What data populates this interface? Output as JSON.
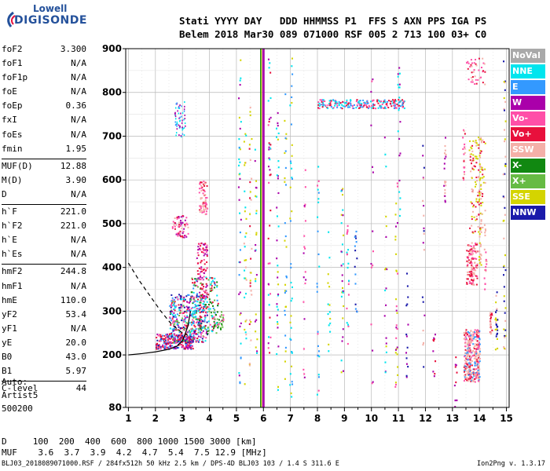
{
  "logo": {
    "brand_top": "Lowell",
    "brand_main": "DIGISONDE"
  },
  "header": {
    "line1": "Stati YYYY DAY   DDD HHMMSS P1  FFS S AXN PPS IGA PS",
    "line2": "Belem 2018 Mar30 089 071000 RSF 005 2 713 100 03+ C0"
  },
  "params": {
    "group1": [
      {
        "label": "foF2",
        "value": "3.300"
      },
      {
        "label": "foF1",
        "value": "N/A"
      },
      {
        "label": "foF1p",
        "value": "N/A"
      },
      {
        "label": "foE",
        "value": "N/A"
      },
      {
        "label": "foEp",
        "value": "0.36"
      },
      {
        "label": "fxI",
        "value": "N/A"
      },
      {
        "label": "foEs",
        "value": "N/A"
      },
      {
        "label": "fmin",
        "value": "1.95"
      }
    ],
    "group2": [
      {
        "label": "MUF(D)",
        "value": "12.88"
      },
      {
        "label": "M(D)",
        "value": "3.90"
      },
      {
        "label": "D",
        "value": "N/A"
      }
    ],
    "group3": [
      {
        "label": "h`F",
        "value": "221.0"
      },
      {
        "label": "h`F2",
        "value": "221.0"
      },
      {
        "label": "h`E",
        "value": "N/A"
      },
      {
        "label": "h`Es",
        "value": "N/A"
      }
    ],
    "group4": [
      {
        "label": "hmF2",
        "value": "244.8"
      },
      {
        "label": "hmF1",
        "value": "N/A"
      },
      {
        "label": "hmE",
        "value": "110.0"
      },
      {
        "label": "yF2",
        "value": "53.4"
      },
      {
        "label": "yF1",
        "value": "N/A"
      },
      {
        "label": "yE",
        "value": "20.0"
      },
      {
        "label": "B0",
        "value": "43.0"
      },
      {
        "label": "B1",
        "value": "5.97"
      }
    ],
    "group5": [
      {
        "label": "C-level",
        "value": "44"
      }
    ]
  },
  "auto": {
    "line1": "Auto:",
    "line2": "Artist5",
    "line3": "500200"
  },
  "footer": {
    "d_line": "D     100  200  400  600  800 1000 1500 3000 [km]",
    "muf_line": "MUF    3.6  3.7  3.9  4.2  4.7  5.4  7.5 12.9 [MHz]",
    "file_line": "BLJ03_2018089071000.RSF / 284fx512h 50 kHz 2.5 km / DPS-4D BLJ03 103 / 1.4 S 311.6 E",
    "version": "Ion2Png v. 1.3.17"
  },
  "legend": [
    {
      "label": "NoVal",
      "color": "#a9a9a9"
    },
    {
      "label": "NNE",
      "color": "#00e5ee"
    },
    {
      "label": "E",
      "color": "#3399ff"
    },
    {
      "label": "W",
      "color": "#aa00aa"
    },
    {
      "label": "Vo-",
      "color": "#ff4fa8"
    },
    {
      "label": "Vo+",
      "color": "#e8103c"
    },
    {
      "label": "SSW",
      "color": "#f4b0a8"
    },
    {
      "label": "X-",
      "color": "#118811"
    },
    {
      "label": "X+",
      "color": "#66bb44"
    },
    {
      "label": "SSE",
      "color": "#d4d400"
    },
    {
      "label": "NNW",
      "color": "#1a1aaa"
    }
  ],
  "chart_data": {
    "type": "scatter",
    "xlabel": "",
    "ylabel": "",
    "xlim": [
      0.9,
      15.1
    ],
    "ylim": [
      80,
      900
    ],
    "x_ticks": [
      1,
      2,
      3,
      4,
      5,
      6,
      7,
      8,
      9,
      10,
      11,
      12,
      13,
      14,
      15
    ],
    "y_ticks": [
      80,
      200,
      300,
      400,
      500,
      600,
      700,
      800,
      900
    ],
    "grid": true,
    "profile_solid": [
      [
        1.0,
        200
      ],
      [
        1.5,
        203
      ],
      [
        2.0,
        207
      ],
      [
        2.5,
        213
      ],
      [
        2.8,
        220
      ],
      [
        3.0,
        232
      ],
      [
        3.1,
        248
      ],
      [
        3.2,
        265
      ],
      [
        3.3,
        300
      ]
    ],
    "profile_dashed": [
      [
        1.0,
        410
      ],
      [
        1.4,
        370
      ],
      [
        1.8,
        335
      ],
      [
        2.2,
        300
      ],
      [
        2.6,
        270
      ],
      [
        3.0,
        250
      ],
      [
        3.2,
        245
      ]
    ],
    "trace_vertical_lines": [
      {
        "x": 6.0,
        "y0": 80,
        "y1": 900,
        "color": "#aa00aa"
      },
      {
        "x": 5.9,
        "y0": 80,
        "y1": 900,
        "color": "#d4d400"
      },
      {
        "x": 5.85,
        "y0": 80,
        "y1": 900,
        "color": "#118811"
      }
    ]
  }
}
